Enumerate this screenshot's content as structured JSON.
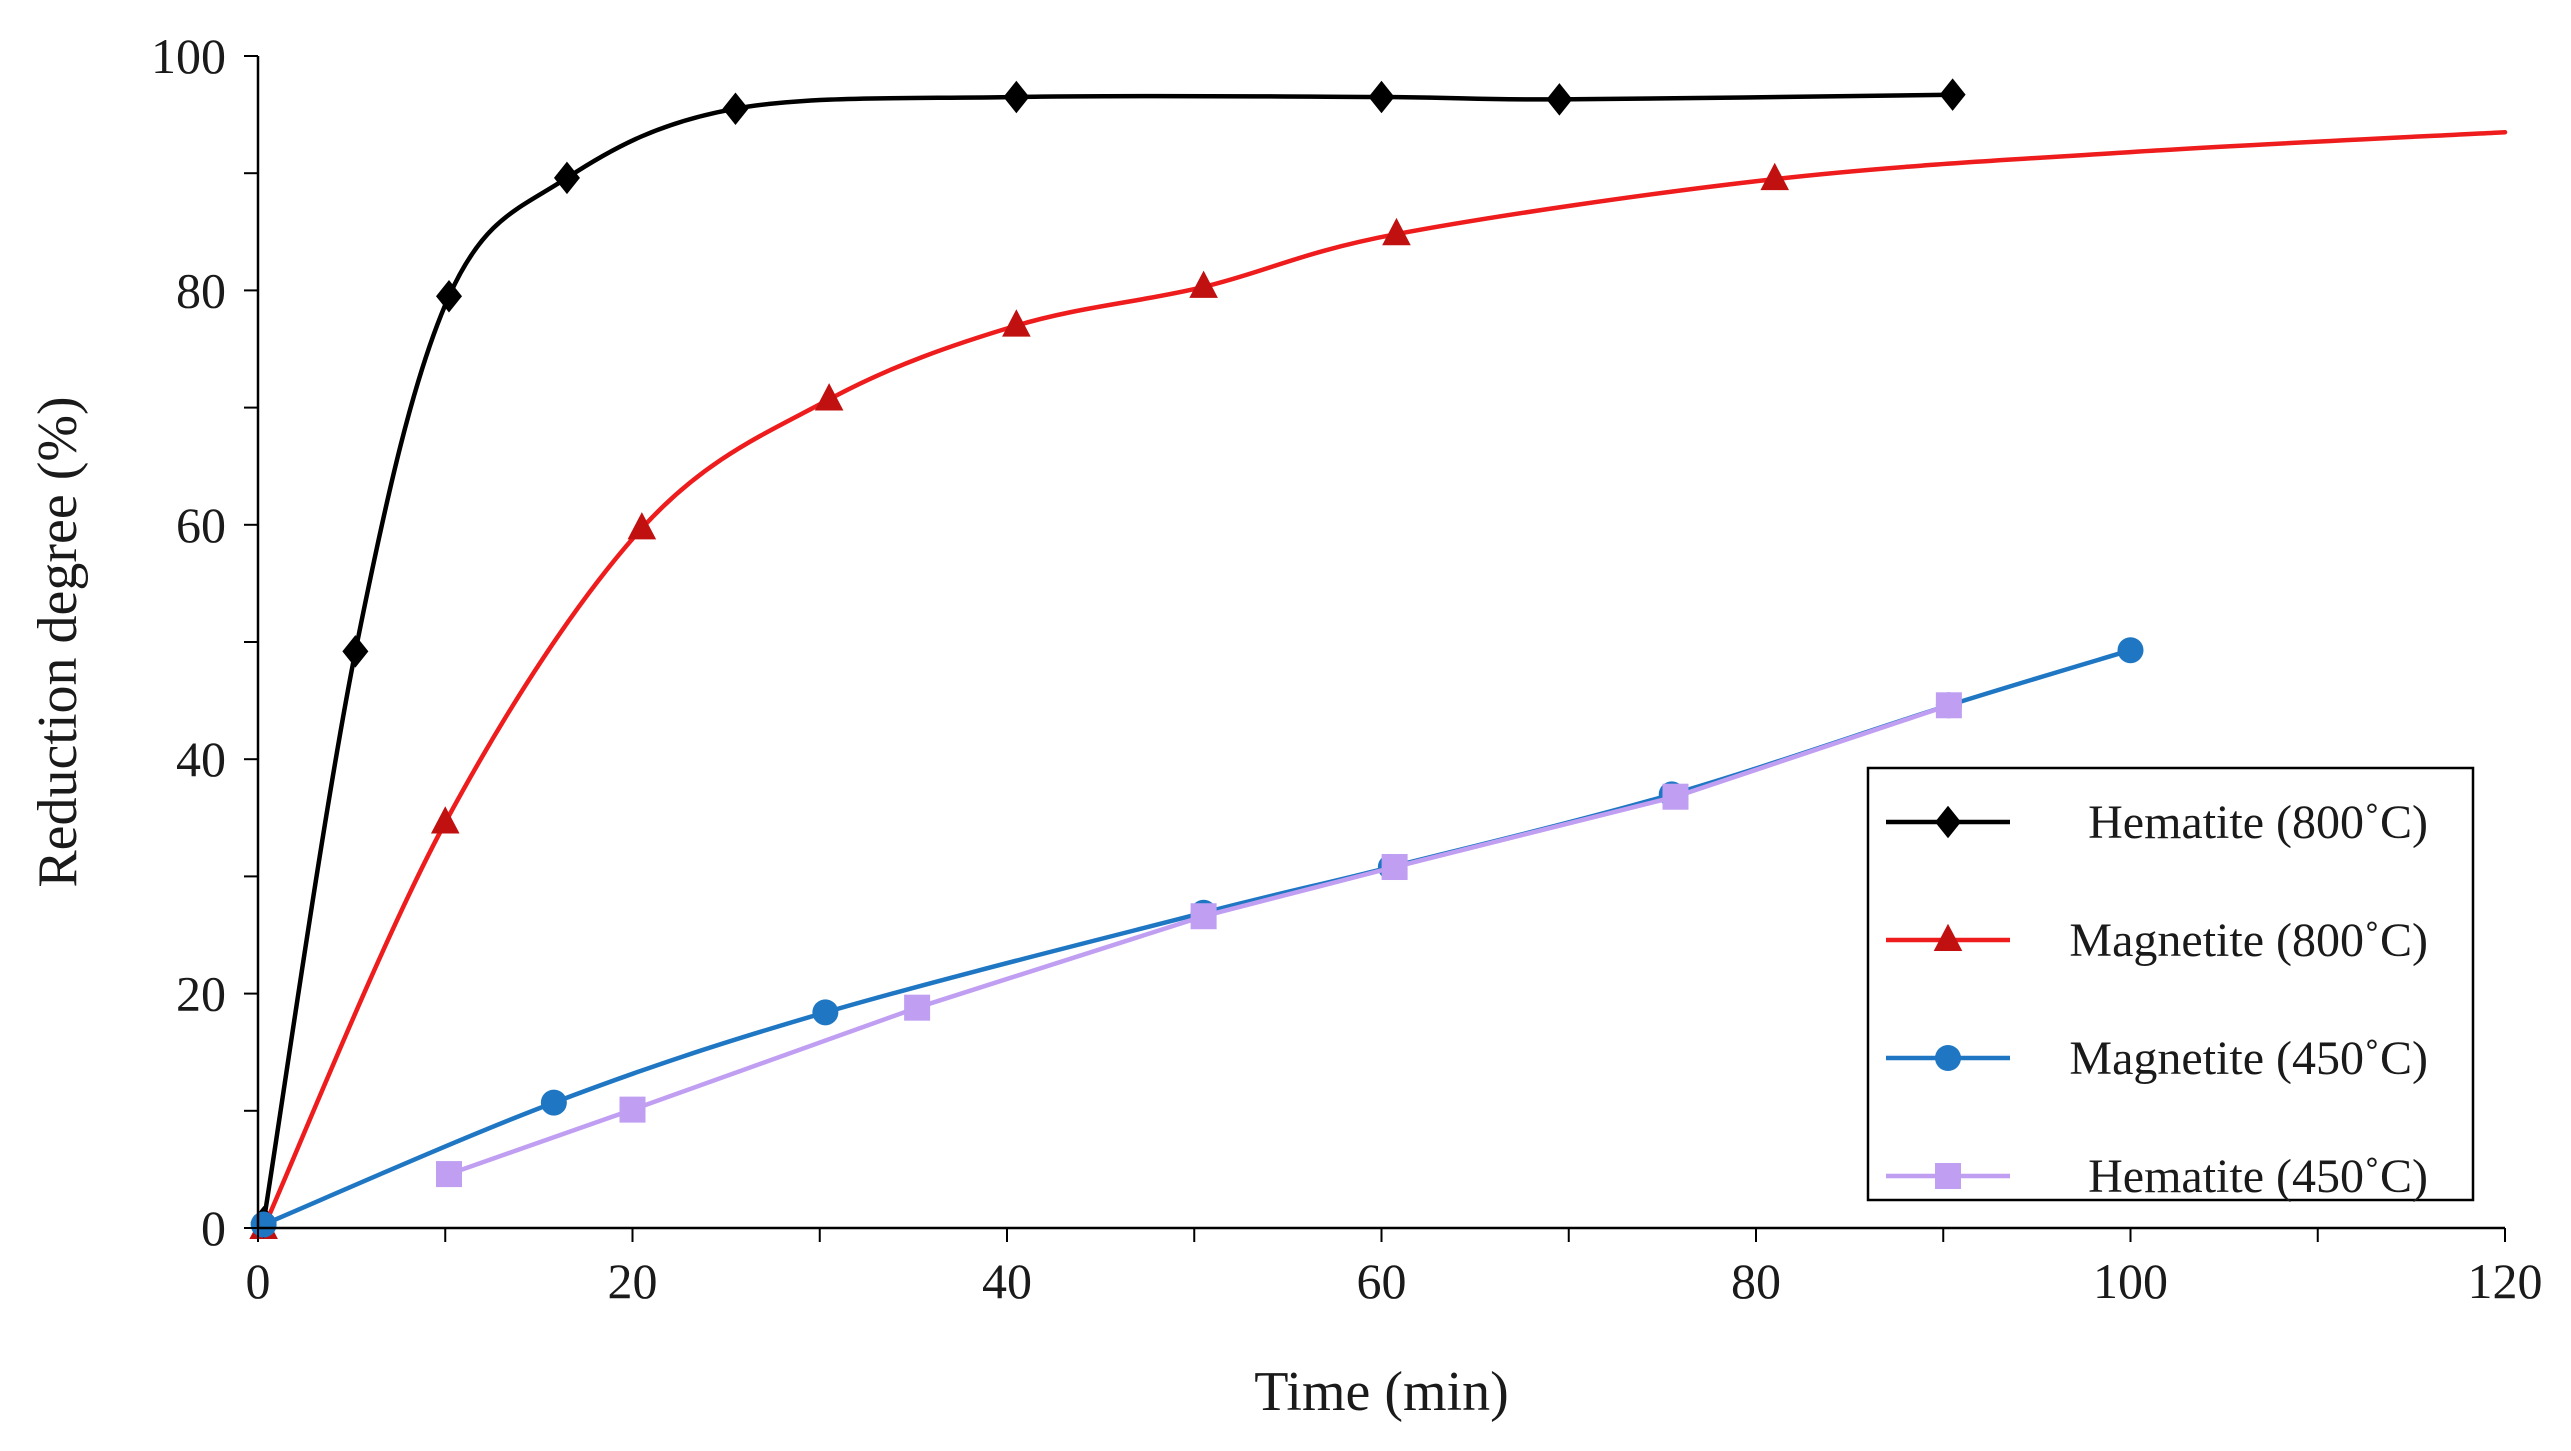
{
  "chart_data": {
    "type": "line",
    "title": "",
    "xlabel": "Time (min)",
    "ylabel": "Reduction degree (%)",
    "xlim": [
      0,
      120
    ],
    "ylim": [
      0,
      100
    ],
    "xticks": [
      0,
      20,
      40,
      60,
      80,
      100,
      120
    ],
    "yticks": [
      0,
      20,
      40,
      60,
      80,
      100
    ],
    "xtick_labels": [
      "0",
      "20",
      "40",
      "60",
      "80",
      "100",
      "120"
    ],
    "ytick_labels": [
      "0",
      "20",
      "40",
      "60",
      "80",
      "100"
    ],
    "x_minor_step": 10,
    "y_minor_step": 10,
    "grid": false,
    "legend_position": "bottom-right",
    "series": [
      {
        "name": "Hematite (800˚C)",
        "color": "#000000",
        "marker": "diamond",
        "smooth": true,
        "x": [
          0.3,
          5.2,
          10.2,
          16.5,
          25.5,
          40.5,
          60.0,
          69.5,
          90.5
        ],
        "y": [
          0.5,
          49.2,
          79.5,
          89.6,
          95.5,
          96.5,
          96.5,
          96.3,
          96.7
        ]
      },
      {
        "name": "Magnetite (800˚C)",
        "color": "#ee1c1c",
        "marker_color": "#c01010",
        "marker": "triangle",
        "smooth": true,
        "x": [
          0.3,
          10.0,
          20.5,
          30.5,
          40.5,
          50.5,
          60.8,
          81.0
        ],
        "y": [
          0.0,
          34.6,
          59.7,
          70.7,
          77.0,
          80.3,
          84.8,
          89.5
        ],
        "tail": [
          [
            100.0,
            91.8
          ],
          [
            120.0,
            93.5
          ]
        ]
      },
      {
        "name": "Magnetite (450˚C)",
        "color": "#1f77c4",
        "marker": "circle",
        "smooth": true,
        "x": [
          0.3,
          15.8,
          30.3,
          50.5,
          60.5,
          75.5,
          90.3,
          100.0
        ],
        "y": [
          0.3,
          10.7,
          18.4,
          26.9,
          30.8,
          37.0,
          44.6,
          49.3
        ]
      },
      {
        "name": "Hematite (450˚C)",
        "color": "#c09ef2",
        "marker": "square",
        "smooth": false,
        "x": [
          10.2,
          20.0,
          35.2,
          50.5,
          60.7,
          75.7,
          90.3
        ],
        "y": [
          4.6,
          10.1,
          18.8,
          26.6,
          30.8,
          36.8,
          44.6
        ]
      }
    ]
  }
}
